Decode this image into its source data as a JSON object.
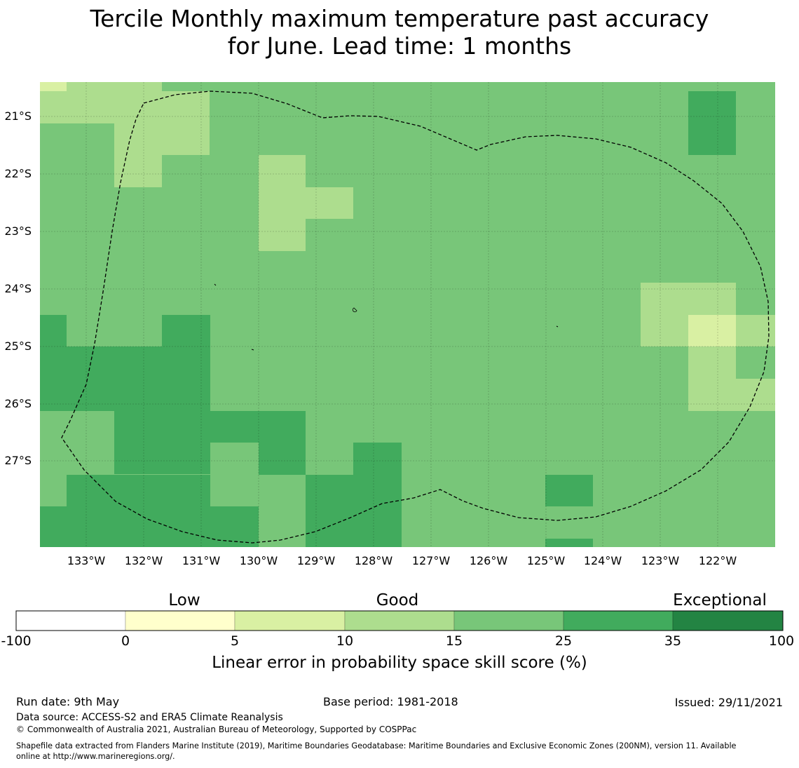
{
  "title": {
    "line1": "Tercile Monthly maximum temperature past accuracy",
    "line2": "for June. Lead time: 1 months"
  },
  "map": {
    "x_ticks": [
      "133°W",
      "132°W",
      "131°W",
      "130°W",
      "129°W",
      "128°W",
      "127°W",
      "126°W",
      "125°W",
      "124°W",
      "123°W",
      "122°W"
    ],
    "y_ticks": [
      "21°S",
      "22°S",
      "23°S",
      "24°S",
      "25°S",
      "26°S",
      "27°S"
    ],
    "boundary_style": "dashed",
    "gridlines": true
  },
  "colorbar": {
    "category_labels": [
      "Low",
      "Good",
      "Exceptional"
    ],
    "tick_labels": [
      "-100",
      "0",
      "5",
      "10",
      "15",
      "25",
      "35",
      "100"
    ],
    "colors": [
      "#ffffff",
      "#ffffcc",
      "#d9f0a3",
      "#addd8e",
      "#78c679",
      "#41ab5d",
      "#238443"
    ],
    "title": "Linear error in probability space skill score (%)"
  },
  "footer": {
    "run_date": "Run date: 9th May",
    "base_period": "Base period: 1981-2018",
    "issued": "Issued: 29/11/2021",
    "data_source": "Data source: ACCESS-S2 and ERA5 Climate Reanalysis",
    "copyright": "© Commonwealth of Australia 2021, Australian Bureau of Meteorology, Supported by COSPPac",
    "shapefile_line1": "Shapefile data extracted from Flanders Marine Institute (2019), Maritime Boundaries Geodatabase: Maritime Boundaries and Exclusive Economic Zones (200NM), version 11. Available",
    "shapefile_line2": "online at http://www.marineregions.org/."
  }
}
